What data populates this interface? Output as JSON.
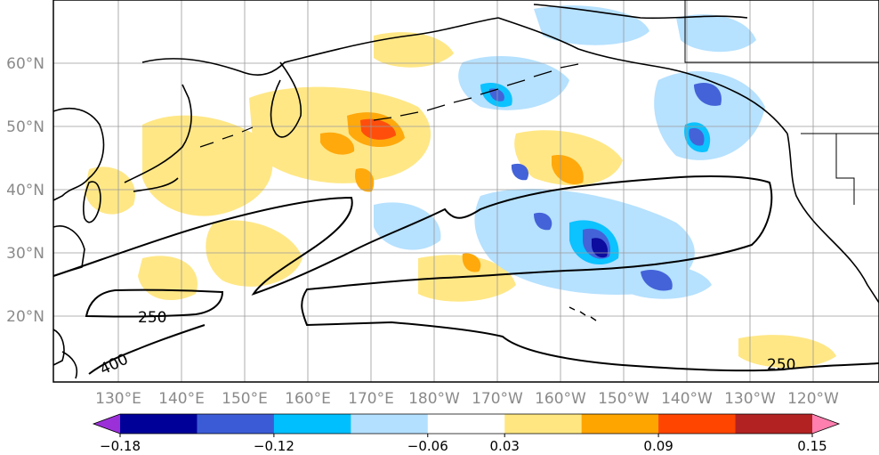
{
  "map": {
    "lon_labels": [
      "130°E",
      "140°E",
      "150°E",
      "160°E",
      "170°E",
      "180°W",
      "170°W",
      "160°W",
      "150°W",
      "140°W",
      "130°W",
      "120°W"
    ],
    "lat_labels": [
      "60°N",
      "50°N",
      "40°N",
      "30°N",
      "20°N"
    ],
    "contour_labels": [
      "250",
      "400",
      "250"
    ]
  },
  "colorbar": {
    "colors": [
      "#9b30d9",
      "#000099",
      "#3b5bd6",
      "#00bfff",
      "#b3e0ff",
      "#ffffff",
      "#ffe680",
      "#ffa500",
      "#ff4500",
      "#b22222",
      "#ff7fae"
    ],
    "tick_labels": [
      "−0.18",
      "−0.12",
      "−0.06",
      "0.03",
      "0.09",
      "0.15"
    ]
  }
}
